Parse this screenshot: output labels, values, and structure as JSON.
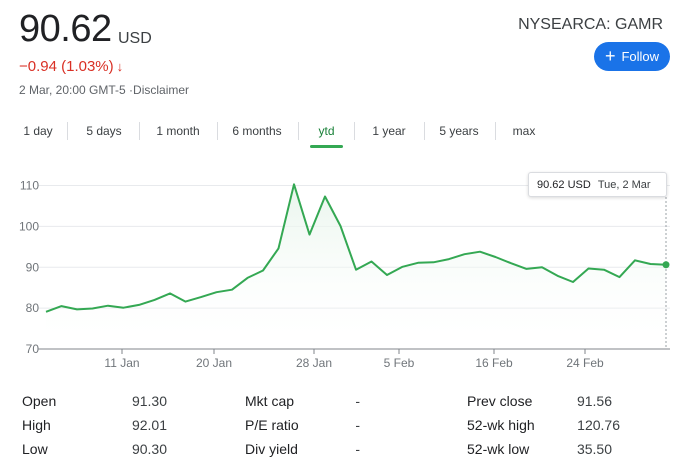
{
  "quote": {
    "price": "90.62",
    "currency": "USD",
    "change": "−0.94 (1.03%)",
    "change_arrow": "↓",
    "timestamp": "2 Mar, 20:00 GMT-5 ·Disclaimer",
    "ticker": "NYSEARCA: GAMR",
    "follow_label": "Follow"
  },
  "ranges": [
    "1 day",
    "5 days",
    "1 month",
    "6 months",
    "ytd",
    "1 year",
    "5 years",
    "max"
  ],
  "active_range": "ytd",
  "tooltip": {
    "price": "90.62 USD",
    "date": "Tue, 2 Mar"
  },
  "colors": {
    "line": "#34a853",
    "down": "#d93025",
    "accent": "#1a73e8"
  },
  "chart_data": {
    "type": "line",
    "ylim": [
      70,
      115
    ],
    "y_ticks": [
      "110",
      "100",
      "90",
      "80",
      "70"
    ],
    "x_ticks": [
      "11 Jan",
      "20 Jan",
      "28 Jan",
      "5 Feb",
      "16 Feb",
      "24 Feb"
    ],
    "points": [
      79.1,
      80.5,
      79.7,
      79.9,
      80.6,
      80.1,
      80.8,
      82.0,
      83.6,
      81.6,
      82.7,
      83.9,
      84.5,
      87.4,
      89.2,
      94.6,
      110.3,
      98.0,
      107.3,
      100.1,
      89.4,
      91.4,
      88.1,
      90.1,
      91.1,
      91.2,
      92.0,
      93.2,
      93.8,
      92.5,
      91.0,
      89.6,
      90.0,
      87.9,
      86.4,
      89.7,
      89.4,
      87.6,
      91.7,
      90.8,
      90.62
    ],
    "close": 90.62
  },
  "stats": [
    [
      {
        "label": "Open",
        "value": "91.30"
      },
      {
        "label": "High",
        "value": "92.01"
      },
      {
        "label": "Low",
        "value": "90.30"
      }
    ],
    [
      {
        "label": "Mkt cap",
        "value": "-"
      },
      {
        "label": "P/E ratio",
        "value": "-"
      },
      {
        "label": "Div yield",
        "value": "-"
      }
    ],
    [
      {
        "label": "Prev close",
        "value": "91.56"
      },
      {
        "label": "52-wk high",
        "value": "120.76"
      },
      {
        "label": "52-wk low",
        "value": "35.50"
      }
    ]
  ]
}
